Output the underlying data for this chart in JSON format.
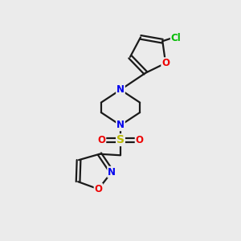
{
  "background_color": "#ebebeb",
  "bond_color": "#1a1a1a",
  "bond_width": 1.6,
  "atom_colors": {
    "N": "#0000ee",
    "O": "#ee0000",
    "S": "#bbbb00",
    "Cl": "#00bb00",
    "C": "#1a1a1a"
  },
  "font_size": 8.5,
  "figsize": [
    3.0,
    3.0
  ],
  "dpi": 100
}
